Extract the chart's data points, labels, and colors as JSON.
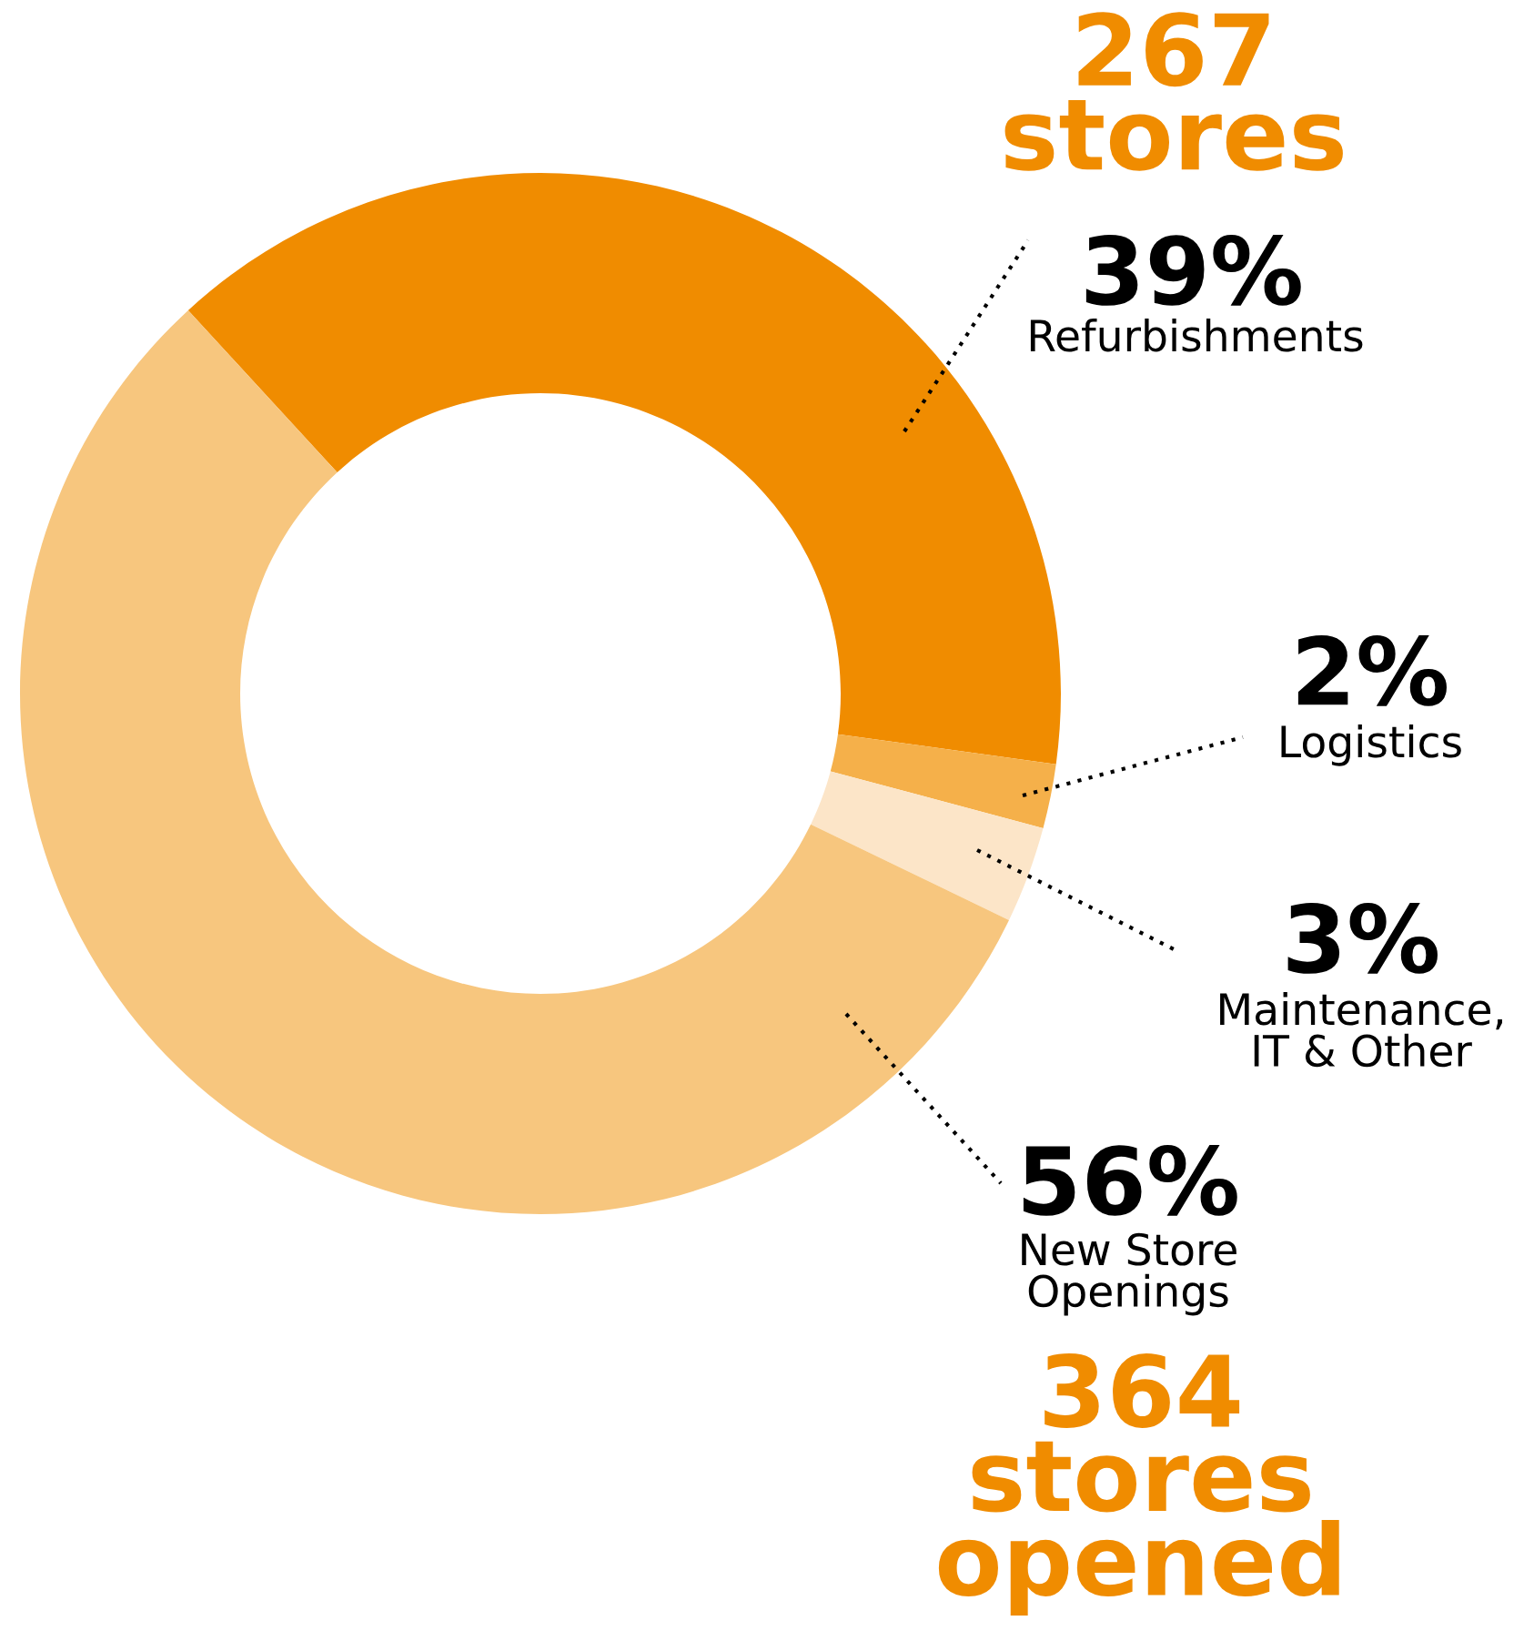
{
  "chart_data": {
    "type": "donut",
    "categories": [
      "Refurbishments",
      "Logistics",
      "Maintenance,\nIT & Other",
      "New Store\nOpenings"
    ],
    "values": [
      39,
      2,
      3,
      56
    ],
    "value_labels": [
      "39%",
      "2%",
      "3%",
      "56%"
    ],
    "colors": [
      "#f08c00",
      "#f5b04a",
      "#fce5c8",
      "#f7c67e"
    ],
    "annotations": [
      "267\nstores",
      "364\nstores\nopened"
    ]
  }
}
